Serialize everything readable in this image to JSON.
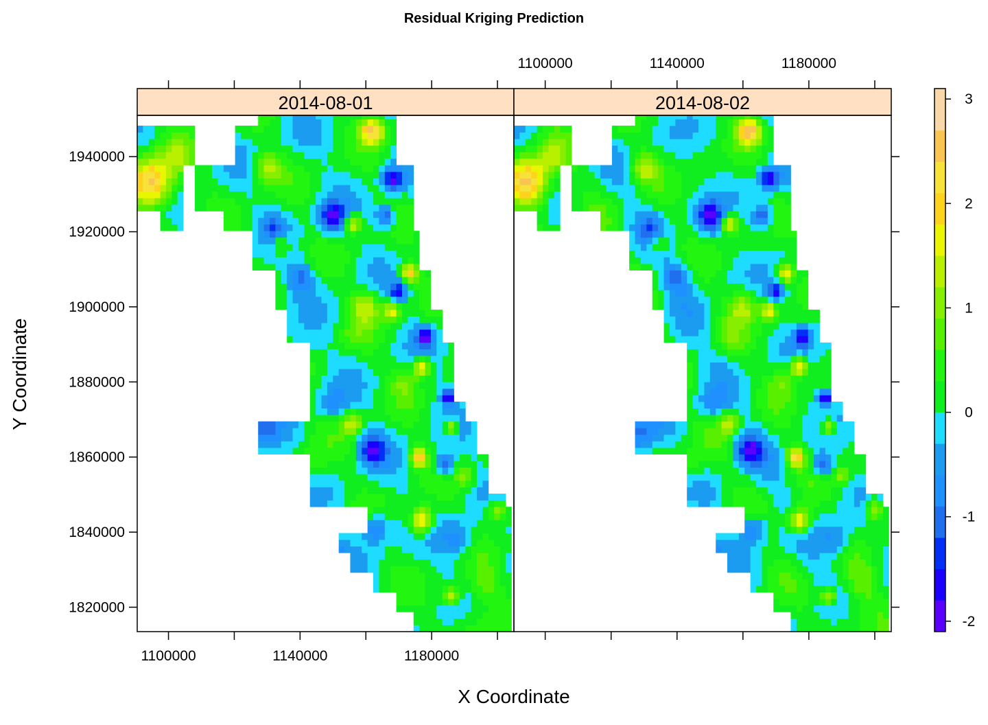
{
  "chart_data": {
    "type": "heatmap",
    "title": "Residual Kriging Prediction",
    "xlabel": "X Coordinate",
    "ylabel": "Y Coordinate",
    "xlim": [
      1090500,
      1205000
    ],
    "ylim": [
      1813500,
      1951000
    ],
    "x_ticks": [
      1100000,
      1120000,
      1140000,
      1160000,
      1180000,
      1200000
    ],
    "x_tick_labels": [
      "1100000",
      "1140000",
      "1180000"
    ],
    "x_tick_label_values": [
      1100000,
      1140000,
      1180000
    ],
    "y_ticks": [
      1820000,
      1840000,
      1860000,
      1880000,
      1900000,
      1920000,
      1940000
    ],
    "y_tick_labels": [
      "1820000",
      "1840000",
      "1860000",
      "1880000",
      "1900000",
      "1920000",
      "1940000"
    ],
    "panels": [
      {
        "name": "2014-08-01"
      },
      {
        "name": "2014-08-02"
      }
    ],
    "colorbar": {
      "range": [
        -2.1,
        3.1
      ],
      "breaks": [
        -2.1,
        -1.8,
        -1.5,
        -1.2,
        -0.9,
        -0.6,
        -0.3,
        0,
        0.3,
        0.6,
        0.9,
        1.2,
        1.5,
        1.8,
        2.1,
        2.4,
        2.7,
        3.1
      ],
      "colors": [
        "#5a00ff",
        "#1a00ff",
        "#0030f5",
        "#1f6fee",
        "#1e90ff",
        "#1c9cf0",
        "#1ddcff",
        "#10ee20",
        "#22f510",
        "#58f000",
        "#88ee00",
        "#b8f000",
        "#eaf500",
        "#ffd21e",
        "#f7e23a",
        "#f9c550",
        "#f8d8a8"
      ],
      "tick_values": [
        -2,
        -1,
        0,
        1,
        2,
        3
      ],
      "tick_labels": [
        "-2",
        "-1",
        "0",
        "1",
        "2",
        "3"
      ]
    },
    "strip_color": "#ffe0c2"
  }
}
